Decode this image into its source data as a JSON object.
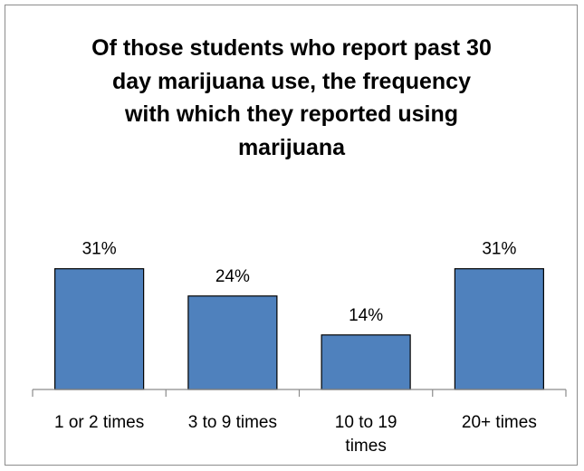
{
  "chart_data": {
    "type": "bar",
    "title_lines": [
      "Of those students who report past 30",
      "day marijuana use, the frequency",
      "with which they reported using",
      "marijuana"
    ],
    "categories": [
      [
        "1 or 2 times"
      ],
      [
        "3 to 9 times"
      ],
      [
        "10 to 19",
        "times"
      ],
      [
        "20+ times"
      ]
    ],
    "values": [
      31,
      24,
      14,
      31
    ],
    "data_labels": [
      "31%",
      "24%",
      "14%",
      "31%"
    ],
    "ylim": [
      0,
      35
    ],
    "grid": false,
    "legend": "none",
    "bar_color": "#4f81bd",
    "bar_edge_color": "#000000"
  }
}
